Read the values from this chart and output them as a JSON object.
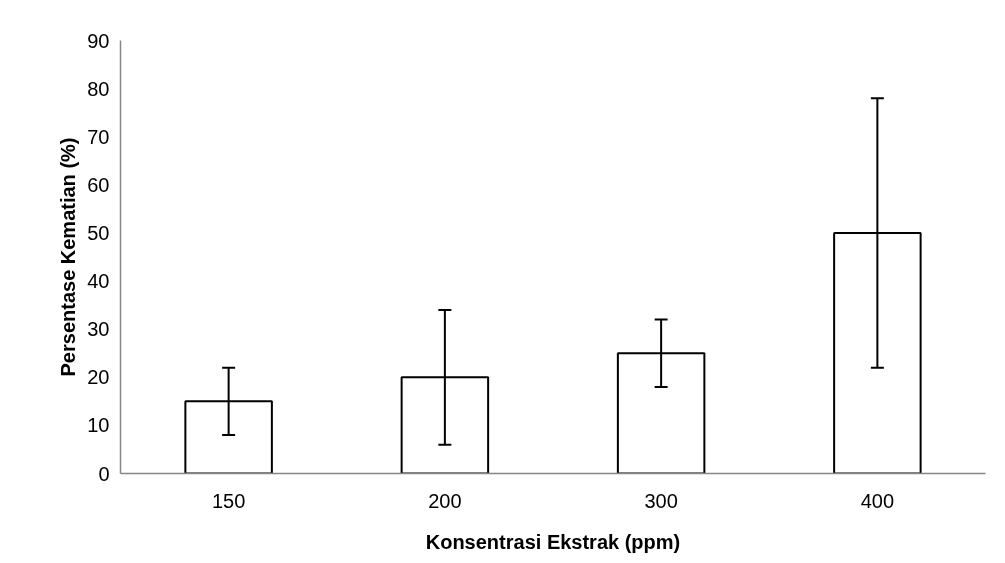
{
  "chart_data": {
    "type": "bar",
    "xlabel": "Konsentrasi Ekstrak (ppm)",
    "ylabel": "Persentase Kematian (%)",
    "categories": [
      "150",
      "200",
      "300",
      "400"
    ],
    "values": [
      15,
      20,
      25,
      50
    ],
    "errors": [
      7,
      14,
      7,
      28
    ],
    "color": "#ffffff",
    "ylim": [
      0,
      90
    ],
    "yticks": [
      0,
      10,
      20,
      30,
      40,
      50,
      60,
      70,
      80,
      90
    ],
    "grid": false
  }
}
